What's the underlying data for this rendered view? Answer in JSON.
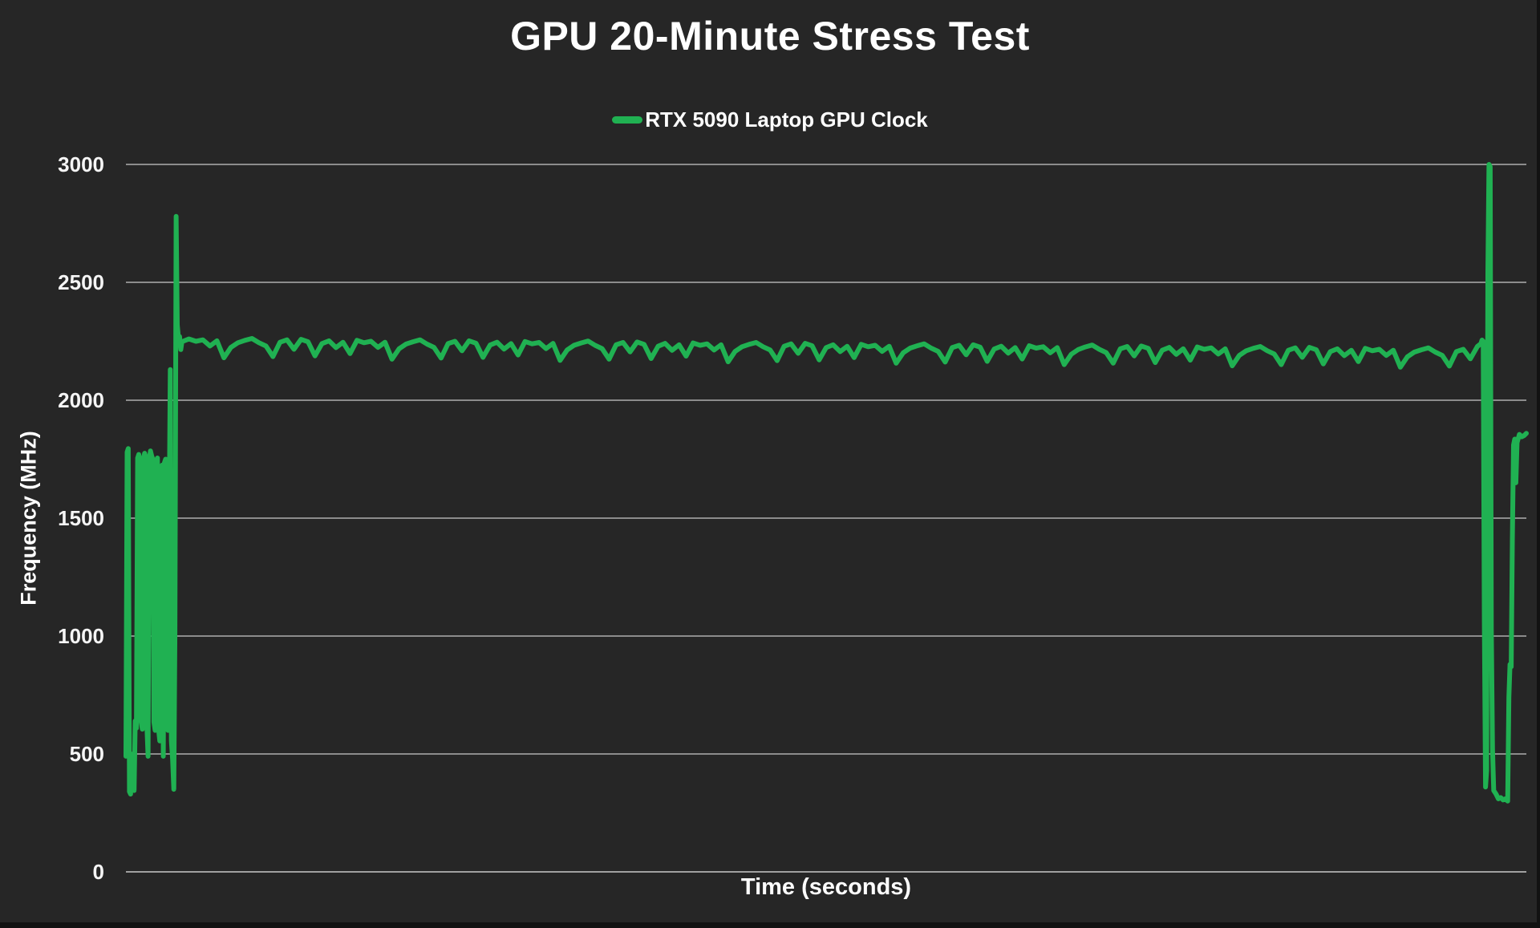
{
  "colors": {
    "background": "#262626",
    "grid": "#8c8c8c",
    "zero_line": "#a0a0a0",
    "text": "#ffffff",
    "accent_green": "#20b152",
    "edge_strip": "#121212"
  },
  "chart_data": {
    "type": "line",
    "title": "GPU 20-Minute Stress Test",
    "xlabel": "Time (seconds)",
    "ylabel": "Frequency (MHz)",
    "xlim": [
      0,
      1200
    ],
    "ylim": [
      0,
      3000
    ],
    "yticks": [
      0,
      500,
      1000,
      1500,
      2000,
      2500,
      3000
    ],
    "xticks_visible": false,
    "grid": "horizontal-only",
    "legend_position": "top-center",
    "series": [
      {
        "name": "RTX 5090 Laptop GPU Clock",
        "color": "#20b152",
        "line_width": 6,
        "points": [
          [
            0,
            490
          ],
          [
            1,
            1780
          ],
          [
            2,
            1795
          ],
          [
            3,
            340
          ],
          [
            4,
            330
          ],
          [
            5,
            470
          ],
          [
            6,
            500
          ],
          [
            7,
            345
          ],
          [
            8,
            640
          ],
          [
            9,
            610
          ],
          [
            10,
            1755
          ],
          [
            11,
            1770
          ],
          [
            12,
            1745
          ],
          [
            13,
            640
          ],
          [
            14,
            605
          ],
          [
            15,
            1750
          ],
          [
            16,
            1775
          ],
          [
            17,
            1760
          ],
          [
            18,
            615
          ],
          [
            19,
            490
          ],
          [
            20,
            1750
          ],
          [
            21,
            1785
          ],
          [
            22,
            1765
          ],
          [
            23,
            1750
          ],
          [
            24,
            635
          ],
          [
            25,
            600
          ],
          [
            26,
            1745
          ],
          [
            27,
            1755
          ],
          [
            28,
            605
          ],
          [
            29,
            555
          ],
          [
            30,
            1705
          ],
          [
            31,
            1725
          ],
          [
            32,
            490
          ],
          [
            33,
            1735
          ],
          [
            34,
            1750
          ],
          [
            35,
            615
          ],
          [
            36,
            600
          ],
          [
            37,
            1460
          ],
          [
            38,
            2130
          ],
          [
            39,
            555
          ],
          [
            40,
            475
          ],
          [
            41,
            350
          ],
          [
            42,
            1020
          ],
          [
            43,
            2780
          ],
          [
            44,
            2320
          ],
          [
            45,
            2265
          ],
          [
            46,
            2270
          ],
          [
            47,
            2215
          ],
          [
            48,
            2248
          ],
          [
            50,
            2252
          ],
          [
            54,
            2260
          ],
          [
            60,
            2250
          ],
          [
            66,
            2256
          ],
          [
            72,
            2230
          ],
          [
            78,
            2252
          ],
          [
            84,
            2180
          ],
          [
            90,
            2224
          ],
          [
            96,
            2244
          ],
          [
            102,
            2254
          ],
          [
            108,
            2262
          ],
          [
            114,
            2244
          ],
          [
            120,
            2230
          ],
          [
            126,
            2185
          ],
          [
            132,
            2246
          ],
          [
            138,
            2256
          ],
          [
            144,
            2216
          ],
          [
            150,
            2258
          ],
          [
            156,
            2248
          ],
          [
            162,
            2188
          ],
          [
            168,
            2240
          ],
          [
            174,
            2252
          ],
          [
            180,
            2223
          ],
          [
            186,
            2246
          ],
          [
            192,
            2198
          ],
          [
            198,
            2254
          ],
          [
            204,
            2244
          ],
          [
            210,
            2250
          ],
          [
            216,
            2224
          ],
          [
            222,
            2246
          ],
          [
            228,
            2174
          ],
          [
            234,
            2218
          ],
          [
            240,
            2238
          ],
          [
            246,
            2248
          ],
          [
            252,
            2256
          ],
          [
            258,
            2238
          ],
          [
            264,
            2224
          ],
          [
            270,
            2179
          ],
          [
            276,
            2240
          ],
          [
            282,
            2250
          ],
          [
            288,
            2210
          ],
          [
            294,
            2252
          ],
          [
            300,
            2242
          ],
          [
            306,
            2182
          ],
          [
            312,
            2234
          ],
          [
            318,
            2246
          ],
          [
            324,
            2217
          ],
          [
            330,
            2240
          ],
          [
            336,
            2192
          ],
          [
            342,
            2249
          ],
          [
            348,
            2239
          ],
          [
            354,
            2245
          ],
          [
            360,
            2219
          ],
          [
            366,
            2241
          ],
          [
            372,
            2169
          ],
          [
            378,
            2213
          ],
          [
            384,
            2233
          ],
          [
            390,
            2243
          ],
          [
            396,
            2251
          ],
          [
            402,
            2233
          ],
          [
            408,
            2219
          ],
          [
            414,
            2174
          ],
          [
            420,
            2235
          ],
          [
            426,
            2245
          ],
          [
            432,
            2205
          ],
          [
            438,
            2247
          ],
          [
            444,
            2237
          ],
          [
            450,
            2177
          ],
          [
            456,
            2229
          ],
          [
            462,
            2241
          ],
          [
            468,
            2212
          ],
          [
            474,
            2235
          ],
          [
            480,
            2187
          ],
          [
            486,
            2243
          ],
          [
            492,
            2233
          ],
          [
            498,
            2239
          ],
          [
            504,
            2213
          ],
          [
            510,
            2235
          ],
          [
            516,
            2163
          ],
          [
            522,
            2207
          ],
          [
            528,
            2227
          ],
          [
            534,
            2237
          ],
          [
            540,
            2245
          ],
          [
            546,
            2227
          ],
          [
            552,
            2213
          ],
          [
            558,
            2168
          ],
          [
            564,
            2229
          ],
          [
            570,
            2239
          ],
          [
            576,
            2199
          ],
          [
            582,
            2241
          ],
          [
            588,
            2231
          ],
          [
            594,
            2171
          ],
          [
            600,
            2223
          ],
          [
            606,
            2235
          ],
          [
            612,
            2206
          ],
          [
            618,
            2229
          ],
          [
            624,
            2181
          ],
          [
            630,
            2237
          ],
          [
            636,
            2227
          ],
          [
            642,
            2233
          ],
          [
            648,
            2207
          ],
          [
            654,
            2229
          ],
          [
            660,
            2157
          ],
          [
            666,
            2201
          ],
          [
            672,
            2221
          ],
          [
            678,
            2231
          ],
          [
            684,
            2239
          ],
          [
            690,
            2221
          ],
          [
            696,
            2207
          ],
          [
            702,
            2162
          ],
          [
            708,
            2223
          ],
          [
            714,
            2233
          ],
          [
            720,
            2193
          ],
          [
            726,
            2235
          ],
          [
            732,
            2225
          ],
          [
            738,
            2165
          ],
          [
            744,
            2217
          ],
          [
            750,
            2229
          ],
          [
            756,
            2200
          ],
          [
            762,
            2223
          ],
          [
            768,
            2175
          ],
          [
            774,
            2231
          ],
          [
            780,
            2221
          ],
          [
            786,
            2227
          ],
          [
            792,
            2201
          ],
          [
            798,
            2223
          ],
          [
            804,
            2151
          ],
          [
            810,
            2195
          ],
          [
            816,
            2215
          ],
          [
            822,
            2226
          ],
          [
            828,
            2234
          ],
          [
            834,
            2216
          ],
          [
            840,
            2202
          ],
          [
            846,
            2157
          ],
          [
            852,
            2218
          ],
          [
            858,
            2228
          ],
          [
            864,
            2188
          ],
          [
            870,
            2230
          ],
          [
            876,
            2220
          ],
          [
            882,
            2160
          ],
          [
            888,
            2212
          ],
          [
            894,
            2224
          ],
          [
            900,
            2195
          ],
          [
            906,
            2218
          ],
          [
            912,
            2170
          ],
          [
            918,
            2226
          ],
          [
            924,
            2216
          ],
          [
            930,
            2222
          ],
          [
            936,
            2196
          ],
          [
            942,
            2218
          ],
          [
            948,
            2146
          ],
          [
            954,
            2190
          ],
          [
            960,
            2210
          ],
          [
            966,
            2220
          ],
          [
            972,
            2228
          ],
          [
            978,
            2210
          ],
          [
            984,
            2196
          ],
          [
            990,
            2151
          ],
          [
            996,
            2212
          ],
          [
            1002,
            2222
          ],
          [
            1008,
            2182
          ],
          [
            1014,
            2224
          ],
          [
            1020,
            2214
          ],
          [
            1026,
            2154
          ],
          [
            1032,
            2206
          ],
          [
            1038,
            2218
          ],
          [
            1044,
            2189
          ],
          [
            1050,
            2212
          ],
          [
            1056,
            2164
          ],
          [
            1062,
            2220
          ],
          [
            1068,
            2210
          ],
          [
            1074,
            2216
          ],
          [
            1080,
            2190
          ],
          [
            1086,
            2212
          ],
          [
            1092,
            2140
          ],
          [
            1098,
            2184
          ],
          [
            1104,
            2204
          ],
          [
            1110,
            2214
          ],
          [
            1116,
            2222
          ],
          [
            1122,
            2204
          ],
          [
            1128,
            2190
          ],
          [
            1134,
            2145
          ],
          [
            1140,
            2206
          ],
          [
            1146,
            2216
          ],
          [
            1152,
            2176
          ],
          [
            1158,
            2228
          ],
          [
            1161,
            2240
          ],
          [
            1162,
            2255
          ],
          [
            1163,
            2250
          ],
          [
            1164,
            1060
          ],
          [
            1165,
            360
          ],
          [
            1166,
            430
          ],
          [
            1167,
            2540
          ],
          [
            1168,
            3000
          ],
          [
            1169,
            2990
          ],
          [
            1170,
            1030
          ],
          [
            1171,
            520
          ],
          [
            1172,
            345
          ],
          [
            1174,
            330
          ],
          [
            1176,
            310
          ],
          [
            1178,
            315
          ],
          [
            1180,
            305
          ],
          [
            1182,
            310
          ],
          [
            1184,
            300
          ],
          [
            1185,
            740
          ],
          [
            1186,
            880
          ],
          [
            1187,
            870
          ],
          [
            1188,
            1400
          ],
          [
            1189,
            1810
          ],
          [
            1190,
            1835
          ],
          [
            1191,
            1650
          ],
          [
            1192,
            1820
          ],
          [
            1194,
            1855
          ],
          [
            1196,
            1845
          ],
          [
            1198,
            1850
          ],
          [
            1200,
            1860
          ]
        ]
      }
    ]
  }
}
